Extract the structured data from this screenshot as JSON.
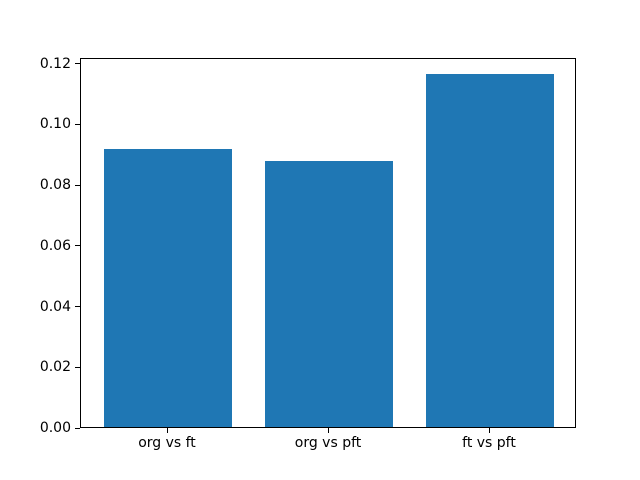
{
  "figure": {
    "background": "#ffffff"
  },
  "chart_data": {
    "type": "bar",
    "categories": [
      "org vs ft",
      "org vs pft",
      "ft vs pft"
    ],
    "values": [
      0.0914,
      0.0877,
      0.1161
    ],
    "title": "",
    "xlabel": "",
    "ylabel": "",
    "ylim": [
      0,
      0.1218
    ],
    "xlim": [
      -0.54,
      2.54
    ],
    "bar_width": 0.8,
    "bar_color": "#1f77b4",
    "axis_color": "#000000",
    "grid": false,
    "legend": null,
    "y_ticks": [
      {
        "value": 0.0,
        "label": "0.00"
      },
      {
        "value": 0.02,
        "label": "0.02"
      },
      {
        "value": 0.04,
        "label": "0.04"
      },
      {
        "value": 0.06,
        "label": "0.06"
      },
      {
        "value": 0.08,
        "label": "0.08"
      },
      {
        "value": 0.1,
        "label": "0.10"
      },
      {
        "value": 0.12,
        "label": "0.12"
      }
    ]
  }
}
